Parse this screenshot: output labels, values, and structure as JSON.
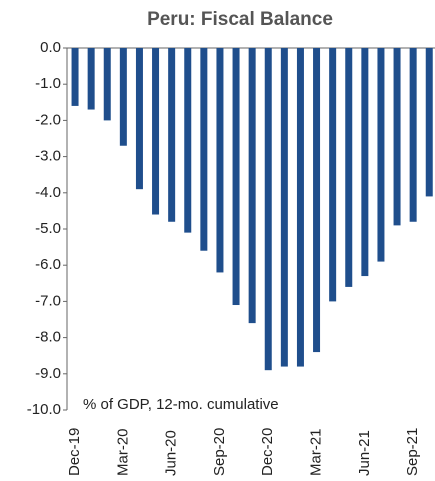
{
  "chart_data": {
    "type": "bar",
    "title": "Peru: Fiscal Balance",
    "annotation": "% of GDP, 12-mo. cumulative",
    "categories": [
      "Dec-19",
      null,
      null,
      "Mar-20",
      null,
      null,
      "Jun-20",
      null,
      null,
      "Sep-20",
      null,
      null,
      "Dec-20",
      null,
      null,
      "Mar-21",
      null,
      null,
      "Jun-21",
      null,
      null,
      "Sep-21",
      null
    ],
    "values": [
      -1.6,
      -1.7,
      -2.0,
      -2.7,
      -3.9,
      -4.6,
      -4.8,
      -5.1,
      -5.6,
      -6.2,
      -7.1,
      -7.6,
      -8.9,
      -8.8,
      -8.8,
      -8.4,
      -7.0,
      -6.6,
      -6.3,
      -5.9,
      -4.9,
      -4.8,
      -4.1
    ],
    "color": "#1f4e8c",
    "ylim": [
      -10,
      0
    ],
    "yticks": [
      {
        "value": 0,
        "label": "0.0"
      },
      {
        "value": -1,
        "label": "-1.0"
      },
      {
        "value": -2,
        "label": "-2.0"
      },
      {
        "value": -3,
        "label": "-3.0"
      },
      {
        "value": -4,
        "label": "-4.0"
      },
      {
        "value": -5,
        "label": "-5.0"
      },
      {
        "value": -6,
        "label": "-6.0"
      },
      {
        "value": -7,
        "label": "-7.0"
      },
      {
        "value": -8,
        "label": "-8.0"
      },
      {
        "value": -9,
        "label": "-9.0"
      },
      {
        "value": -10,
        "label": "-10.0"
      }
    ],
    "grid": false
  }
}
